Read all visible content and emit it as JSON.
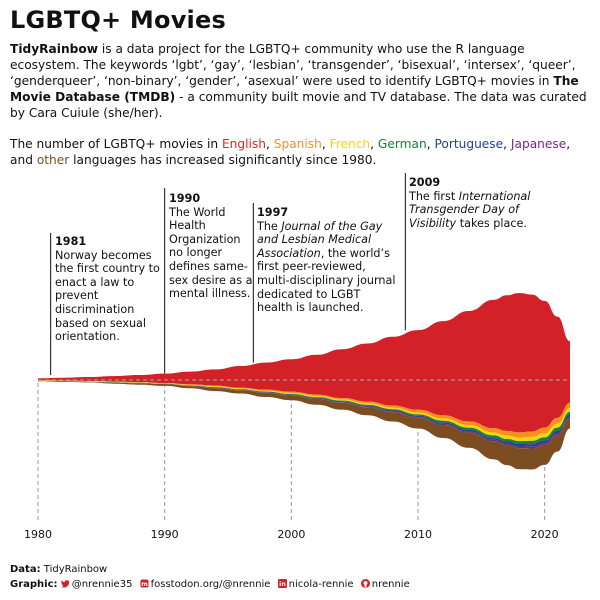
{
  "title": "LGBTQ+ Movies",
  "intro": {
    "brand": "TidyRainbow",
    "text1": " is a data project for the LGBTQ+ community who use the R language ecosystem. The keywords ‘lgbt’, ‘gay’, ‘lesbian’, ‘transgender’, ‘bisexual’, ‘intersex’, ‘queer’, ‘genderqueer’, ‘non-binary’, ‘gender’, ‘asexual’ were used to identify LGBTQ+ movies in ",
    "tmdb": "The Movie Database (TMDB)",
    "text2": " - a community built movie and TV database. The data was curated by Cara Cuiule (she/her)."
  },
  "subtitle": {
    "pre": "The number of LGBTQ+ movies in ",
    "post": " languages has increased significantly since 1980.",
    "languages": [
      {
        "label": "English",
        "color": "#E1242A",
        "sep": ", "
      },
      {
        "label": "Spanish",
        "color": "#F7901E",
        "sep": ", "
      },
      {
        "label": "French",
        "color": "#F6D50E",
        "sep": ", "
      },
      {
        "label": "German",
        "color": "#15813B",
        "sep": ", "
      },
      {
        "label": "Portuguese",
        "color": "#24408E",
        "sep": ", "
      },
      {
        "label": "Japanese",
        "color": "#732982",
        "sep": ", and "
      },
      {
        "label": "other",
        "color": "#7B4D20",
        "sep": ""
      }
    ]
  },
  "annotations": [
    {
      "year": "1981",
      "text": "Norway becomes the first country to enact a law to prevent discrimination based on sexual orientation."
    },
    {
      "year": "1990",
      "text": "The World Health Organization no longer defines same-sex desire as a mental illness."
    },
    {
      "year": "1997",
      "pre": "The ",
      "italic": "Journal of the Gay and Lesbian Medical Association",
      "text": ", the world’s first peer-reviewed, multi-disciplinary journal dedicated to LGBT health is launched."
    },
    {
      "year": "2009",
      "pre": "The first ",
      "italic": "International Transgender Day of Visibility",
      "text": " takes place."
    }
  ],
  "chart_data": {
    "type": "area",
    "subtype": "streamgraph",
    "x_ticks": [
      1980,
      1990,
      2000,
      2010,
      2020
    ],
    "x": [
      1980,
      1982,
      1984,
      1986,
      1988,
      1990,
      1992,
      1994,
      1996,
      1998,
      2000,
      2002,
      2004,
      2006,
      2008,
      2010,
      2012,
      2014,
      2016,
      2017,
      2018,
      2019,
      2020,
      2021,
      2022
    ],
    "series": [
      {
        "name": "English",
        "color": "#D42128",
        "values": [
          5,
          8,
          11,
          15,
          20,
          26,
          35,
          45,
          60,
          75,
          90,
          110,
          135,
          160,
          190,
          220,
          260,
          305,
          355,
          375,
          385,
          378,
          350,
          280,
          170
        ]
      },
      {
        "name": "Spanish",
        "color": "#F7901E",
        "values": [
          1,
          1,
          1,
          1,
          1,
          1,
          2,
          2,
          2,
          3,
          3,
          4,
          4,
          5,
          6,
          8,
          9,
          10,
          12,
          13,
          14,
          15,
          16,
          16,
          15
        ]
      },
      {
        "name": "French",
        "color": "#F6D50E",
        "values": [
          1,
          1,
          1,
          1,
          1,
          1,
          1,
          2,
          2,
          2,
          3,
          3,
          3,
          4,
          4,
          5,
          6,
          7,
          8,
          9,
          10,
          11,
          11,
          11,
          10
        ]
      },
      {
        "name": "German",
        "color": "#15813B",
        "values": [
          0,
          0,
          0,
          1,
          1,
          1,
          1,
          1,
          1,
          2,
          2,
          2,
          3,
          3,
          3,
          4,
          5,
          6,
          7,
          7,
          8,
          9,
          9,
          9,
          8
        ]
      },
      {
        "name": "Portuguese",
        "color": "#24408E",
        "values": [
          0,
          0,
          0,
          0,
          0,
          0,
          1,
          1,
          1,
          1,
          1,
          2,
          2,
          2,
          3,
          3,
          4,
          5,
          5,
          6,
          7,
          7,
          7,
          7,
          6
        ]
      },
      {
        "name": "Japanese",
        "color": "#732982",
        "values": [
          0,
          0,
          0,
          0,
          0,
          0,
          0,
          1,
          1,
          1,
          1,
          1,
          1,
          2,
          2,
          2,
          3,
          3,
          4,
          4,
          5,
          5,
          5,
          5,
          4
        ]
      },
      {
        "name": "other",
        "color": "#7B4D20",
        "values": [
          1,
          2,
          2,
          3,
          4,
          5,
          6,
          8,
          9,
          11,
          13,
          16,
          19,
          22,
          26,
          30,
          36,
          42,
          50,
          55,
          58,
          58,
          55,
          45,
          28
        ]
      }
    ],
    "xlim": [
      1980,
      2022
    ],
    "annotation_years": [
      1981,
      1990,
      1997,
      2009
    ],
    "grid": false
  },
  "footer": {
    "data_label": "Data:",
    "data_value": "TidyRainbow",
    "graphic_label": "Graphic:",
    "items": [
      {
        "icon": "twitter-icon",
        "text": "@nrennie35"
      },
      {
        "icon": "mastodon-icon",
        "text": "fosstodon.org/@nrennie"
      },
      {
        "icon": "linkedin-icon",
        "text": "nicola-rennie"
      },
      {
        "icon": "github-icon",
        "text": "nrennie"
      }
    ]
  }
}
